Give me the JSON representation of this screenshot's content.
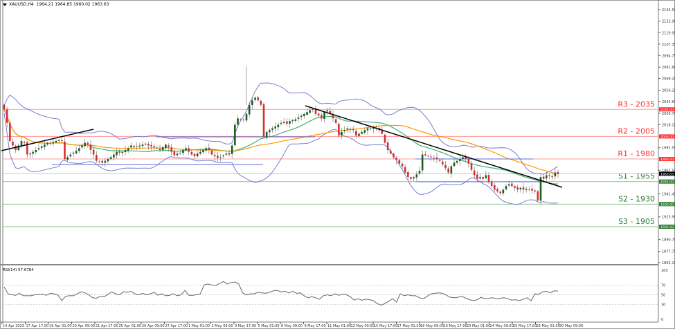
{
  "header": {
    "symbol": "XAUUSD,H4",
    "ohlc": "1964.21 1964.85 1960.02 1963.63"
  },
  "rsi_panel": {
    "label": "RSI(14) 57.6784",
    "levels": [
      70,
      50,
      30
    ],
    "axis_ticks": [
      "100",
      "70",
      "50",
      "30",
      "0"
    ]
  },
  "price_axis": {
    "ticks": [
      {
        "label": "2145.50",
        "price": 2145.5
      },
      {
        "label": "2132.90",
        "price": 2132.9
      },
      {
        "label": "2119.95",
        "price": 2119.95
      },
      {
        "label": "2107.35",
        "price": 2107.35
      },
      {
        "label": "2094.75",
        "price": 2094.75
      },
      {
        "label": "2081.80",
        "price": 2081.8
      },
      {
        "label": "2069.20",
        "price": 2069.2
      },
      {
        "label": "2056.25",
        "price": 2056.25
      },
      {
        "label": "2043.65",
        "price": 2043.65
      },
      {
        "label": "2030.70",
        "price": 2030.7
      },
      {
        "label": "2018.10",
        "price": 2018.1
      },
      {
        "label": "1992.55",
        "price": 1992.55
      },
      {
        "label": "1967.55",
        "price": 1967.55
      },
      {
        "label": "1941.45",
        "price": 1941.45
      },
      {
        "label": "1915.90",
        "price": 1915.9
      },
      {
        "label": "1890.70",
        "price": 1890.7
      },
      {
        "label": "1877.75",
        "price": 1877.75
      },
      {
        "label": "1865.15",
        "price": 1865.15
      }
    ],
    "current_price_label": "1963.63",
    "current_price_color": "#000000"
  },
  "levels": [
    {
      "name": "R3",
      "label": "R3 - 2035",
      "price": 2035,
      "tag": "2035.00",
      "color": "#ff3030",
      "line": "#ff9a9a"
    },
    {
      "name": "R2",
      "label": "R2 - 2005",
      "price": 2005,
      "tag": "2005.00",
      "color": "#ff3030",
      "line": "#ff9a9a"
    },
    {
      "name": "R1",
      "label": "R1 - 1980",
      "price": 1980,
      "tag": "1980.00",
      "color": "#ff3030",
      "line": "#ff9a9a"
    },
    {
      "name": "S1",
      "label": "S1 - 1955",
      "price": 1955,
      "tag": "1955.00",
      "color": "#2e7d32",
      "line": "#8cc08c"
    },
    {
      "name": "S2",
      "label": "S2 - 1930",
      "price": 1930,
      "tag": "1930.00",
      "color": "#2e7d32",
      "line": "#8cc08c"
    },
    {
      "name": "S3",
      "label": "S3 - 1905",
      "price": 1905,
      "tag": "1905.00",
      "color": "#2e7d32",
      "line": "#8cc08c"
    }
  ],
  "time_axis": [
    "14 Apr 2023",
    "17 Apr 17:00",
    "19 Apr 01:00",
    "20 Apr 09:00",
    "21 Apr 17:00",
    "25 Apr 01:00",
    "26 Apr 09:00",
    "27 Apr 17:00",
    "1 May 01:00",
    "2 May 09:00",
    "3 May 17:00",
    "5 May 01:00",
    "8 May 09:00",
    "9 May 17:00",
    "11 May 01:00",
    "12 May 09:00",
    "15 May 17:00",
    "17 May 01:00",
    "18 May 09:00",
    "19 May 17:00",
    "23 May 01:00",
    "24 May 09:00",
    "25 May 17:00",
    "29 May 01:00",
    "30 May 09:00"
  ],
  "colors": {
    "bull": "#1b5e20",
    "bear": "#d32f2f",
    "bollinger": "#7b7bd0",
    "ma_fast": "#3cb371",
    "ma_slow": "#ff9800",
    "trendline": "#000000",
    "horizontal_blue": "#5b6bd6",
    "rsi": "#666666"
  },
  "chart_data": {
    "type": "candlestick",
    "title": "XAUUSD,H4",
    "ylabel": "Price",
    "ylim": [
      1865.15,
      2150
    ],
    "support_resistance": {
      "R3": 2035,
      "R2": 2005,
      "R1": 1980,
      "S1": 1955,
      "S2": 1930,
      "S3": 1905
    },
    "close_series": [
      2035,
      2020,
      2000,
      1995,
      1990,
      1995,
      2000,
      1998,
      1985,
      1986,
      1988,
      1990,
      1992,
      1994,
      1996,
      1998,
      1997,
      1999,
      2000,
      2001,
      2000,
      1980,
      1982,
      1985,
      1987,
      1989,
      1992,
      1995,
      1998,
      1996,
      1990,
      1985,
      1978,
      1977,
      1976,
      1978,
      1980,
      1982,
      1985,
      1988,
      1987,
      1988,
      1990,
      1992,
      1995,
      1993,
      1994,
      1995,
      1996,
      1997,
      1995,
      1994,
      1993,
      1992,
      1990,
      1993,
      1996,
      1993,
      1988,
      1984,
      1986,
      1987,
      1990,
      1992,
      1988,
      1985,
      1983,
      1986,
      1988,
      1990,
      1992,
      1990,
      1985,
      1983,
      1981,
      1982,
      1984,
      1986,
      1985,
      1995,
      2018,
      2025,
      2024,
      2023,
      2030,
      2040,
      2045,
      2048,
      2045,
      2040,
      2005,
      2010,
      2012,
      2014,
      2016,
      2018,
      2020,
      2021,
      2019,
      2022,
      2023,
      2024,
      2026,
      2028,
      2030,
      2032,
      2034,
      2035,
      2030,
      2028,
      2025,
      2032,
      2034,
      2030,
      2025,
      2020,
      2006,
      2010,
      2012,
      2014,
      2013,
      2012,
      2006,
      2008,
      2010,
      2012,
      2014,
      2014,
      2015,
      2015,
      2012,
      2008,
      1998,
      1990,
      1986,
      1982,
      1979,
      1975,
      1972,
      1965,
      1960,
      1958,
      1960,
      1963,
      1967,
      1985,
      1984,
      1983,
      1982,
      1981,
      1980,
      1978,
      1974,
      1970,
      1965,
      1972,
      1976,
      1978,
      1980,
      1982,
      1980,
      1975,
      1968,
      1962,
      1958,
      1960,
      1958,
      1962,
      1955,
      1950,
      1946,
      1944,
      1942,
      1946,
      1950,
      1952,
      1950,
      1948,
      1946,
      1948,
      1946,
      1947,
      1946,
      1945,
      1944,
      1934,
      1960,
      1958,
      1962,
      1961,
      1960,
      1965,
      1963.63
    ],
    "rsi_series": [
      66,
      52,
      50,
      49,
      53,
      48,
      48,
      48,
      50,
      50,
      51,
      49,
      53,
      52,
      49,
      38,
      47,
      48,
      48,
      52,
      56,
      54,
      50,
      44,
      43,
      47,
      46,
      51,
      56,
      52,
      50,
      56,
      55,
      57,
      52,
      50,
      53,
      50,
      52,
      55,
      49,
      52,
      48,
      49,
      52,
      48,
      50,
      59,
      49,
      49,
      50,
      52,
      70,
      72,
      70,
      69,
      73,
      77,
      72,
      75,
      76,
      72,
      54,
      50,
      52,
      52,
      55,
      54,
      53,
      55,
      58,
      59,
      56,
      57,
      54,
      57,
      53,
      54,
      48,
      44,
      46,
      44,
      41,
      48,
      50,
      48,
      52,
      49,
      51,
      50,
      46,
      39,
      42,
      39,
      41,
      40,
      38,
      32,
      29,
      32,
      37,
      42,
      35,
      52,
      48,
      50,
      48,
      48,
      44,
      42,
      47,
      52,
      53,
      54,
      53,
      49,
      45,
      44,
      45,
      47,
      43,
      40,
      38,
      40,
      45,
      42,
      43,
      44,
      42,
      43,
      44,
      42,
      39,
      40,
      38,
      41,
      44,
      38,
      52,
      51,
      56,
      57,
      54,
      58,
      57.68
    ]
  }
}
